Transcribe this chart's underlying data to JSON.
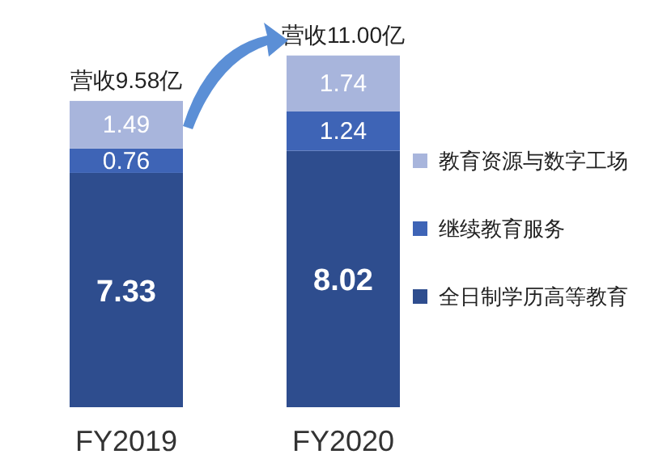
{
  "chart_data": {
    "type": "bar",
    "stacked": true,
    "categories": [
      "FY2019",
      "FY2020"
    ],
    "series": [
      {
        "name": "全日制学历高等教育",
        "color": "#2e4d8e",
        "values": [
          7.33,
          8.02
        ]
      },
      {
        "name": "继续教育服务",
        "color": "#3e64b6",
        "values": [
          0.76,
          1.24
        ]
      },
      {
        "name": "教育资源与数字工场",
        "color": "#a8b5dc",
        "values": [
          1.49,
          1.74
        ]
      }
    ],
    "data_labels": true,
    "totals": [
      "营收9.58亿",
      "营收11.00亿"
    ],
    "legend": "right"
  }
}
